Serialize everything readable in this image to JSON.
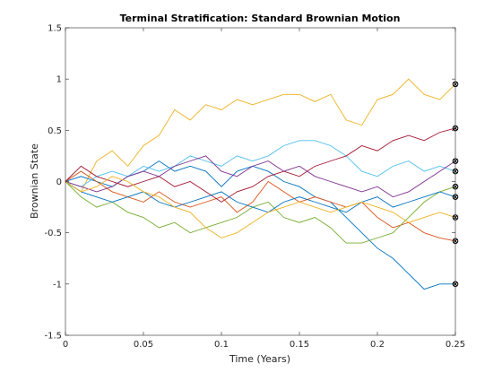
{
  "chart_data": {
    "type": "line",
    "title": "Terminal Stratification: Standard Brownian Motion",
    "xlabel": "Time (Years)",
    "ylabel": "Brownian State",
    "xlim": [
      0,
      0.25
    ],
    "ylim": [
      -1.5,
      1.5
    ],
    "xticks": [
      0,
      0.05,
      0.1,
      0.15,
      0.2,
      0.25
    ],
    "xtick_labels": [
      "0",
      "0.05",
      "0.1",
      "0.15",
      "0.2",
      "0.25"
    ],
    "yticks": [
      -1.5,
      -1,
      -0.5,
      0,
      0.5,
      1,
      1.5
    ],
    "ytick_labels": [
      "-1.5",
      "-1",
      "-0.5",
      "0",
      "0.5",
      "1",
      "1.5"
    ],
    "grid": false,
    "box": true,
    "end_markers": "circle-x",
    "x": [
      0,
      0.01,
      0.02,
      0.03,
      0.04,
      0.05,
      0.06,
      0.07,
      0.08,
      0.09,
      0.1,
      0.11,
      0.12,
      0.13,
      0.14,
      0.15,
      0.16,
      0.17,
      0.18,
      0.19,
      0.2,
      0.21,
      0.22,
      0.23,
      0.24,
      0.25
    ],
    "series": [
      {
        "color": "#EDB120",
        "values": [
          0,
          -0.1,
          0.2,
          0.3,
          0.15,
          0.35,
          0.45,
          0.7,
          0.6,
          0.75,
          0.7,
          0.8,
          0.75,
          0.8,
          0.85,
          0.85,
          0.78,
          0.85,
          0.6,
          0.55,
          0.8,
          0.85,
          1.0,
          0.85,
          0.8,
          0.95
        ]
      },
      {
        "color": "#0072BD",
        "values": [
          0,
          0.05,
          0.0,
          -0.05,
          0.05,
          0.1,
          0.2,
          0.1,
          0.15,
          0.1,
          -0.05,
          0.1,
          0.15,
          0.1,
          0.0,
          -0.05,
          -0.15,
          -0.2,
          -0.35,
          -0.5,
          -0.65,
          -0.75,
          -0.9,
          -1.05,
          -1.0,
          -1.0
        ]
      },
      {
        "color": "#D95319",
        "values": [
          0,
          0.1,
          0.0,
          -0.1,
          -0.15,
          -0.2,
          -0.1,
          -0.2,
          -0.25,
          -0.2,
          -0.15,
          -0.3,
          -0.2,
          0.0,
          -0.1,
          -0.2,
          -0.15,
          -0.2,
          -0.25,
          -0.2,
          -0.35,
          -0.45,
          -0.4,
          -0.5,
          -0.55,
          -0.58
        ]
      },
      {
        "color": "#4DBEEE",
        "values": [
          0,
          -0.05,
          0.05,
          0.1,
          0.05,
          0.15,
          0.1,
          0.15,
          0.25,
          0.2,
          0.15,
          0.25,
          0.2,
          0.25,
          0.35,
          0.4,
          0.4,
          0.35,
          0.25,
          0.1,
          0.05,
          0.15,
          0.2,
          0.1,
          0.15,
          0.1
        ]
      },
      {
        "color": "#A2142F",
        "values": [
          0,
          0.15,
          0.05,
          0.0,
          -0.05,
          0.0,
          0.05,
          -0.05,
          0.0,
          -0.1,
          -0.2,
          -0.1,
          -0.05,
          0.05,
          0.1,
          0.05,
          0.15,
          0.2,
          0.25,
          0.35,
          0.3,
          0.4,
          0.45,
          0.4,
          0.48,
          0.52
        ]
      },
      {
        "color": "#7E2F8E",
        "values": [
          0,
          -0.05,
          -0.1,
          -0.05,
          0.05,
          0.1,
          0.05,
          0.15,
          0.2,
          0.25,
          0.1,
          0.05,
          0.15,
          0.2,
          0.1,
          0.15,
          0.05,
          0.0,
          -0.05,
          -0.1,
          -0.05,
          -0.15,
          -0.1,
          0.0,
          0.1,
          0.2
        ]
      },
      {
        "color": "#77AC30",
        "values": [
          0,
          -0.15,
          -0.25,
          -0.2,
          -0.3,
          -0.35,
          -0.45,
          -0.4,
          -0.5,
          -0.45,
          -0.4,
          -0.35,
          -0.25,
          -0.2,
          -0.35,
          -0.4,
          -0.35,
          -0.45,
          -0.6,
          -0.6,
          -0.55,
          -0.5,
          -0.35,
          -0.2,
          -0.1,
          -0.05
        ]
      },
      {
        "color": "#0072BD",
        "values": [
          0,
          -0.1,
          -0.15,
          -0.2,
          -0.15,
          -0.1,
          -0.2,
          -0.25,
          -0.2,
          -0.15,
          -0.1,
          -0.2,
          -0.25,
          -0.3,
          -0.2,
          -0.15,
          -0.2,
          -0.25,
          -0.3,
          -0.2,
          -0.15,
          -0.25,
          -0.2,
          -0.15,
          -0.1,
          -0.15
        ]
      },
      {
        "color": "#EDB120",
        "values": [
          0,
          -0.1,
          -0.05,
          0.05,
          0.0,
          -0.1,
          -0.15,
          -0.25,
          -0.3,
          -0.45,
          -0.55,
          -0.5,
          -0.4,
          -0.3,
          -0.25,
          -0.2,
          -0.25,
          -0.3,
          -0.25,
          -0.2,
          -0.25,
          -0.3,
          -0.4,
          -0.35,
          -0.3,
          -0.35
        ]
      }
    ]
  }
}
